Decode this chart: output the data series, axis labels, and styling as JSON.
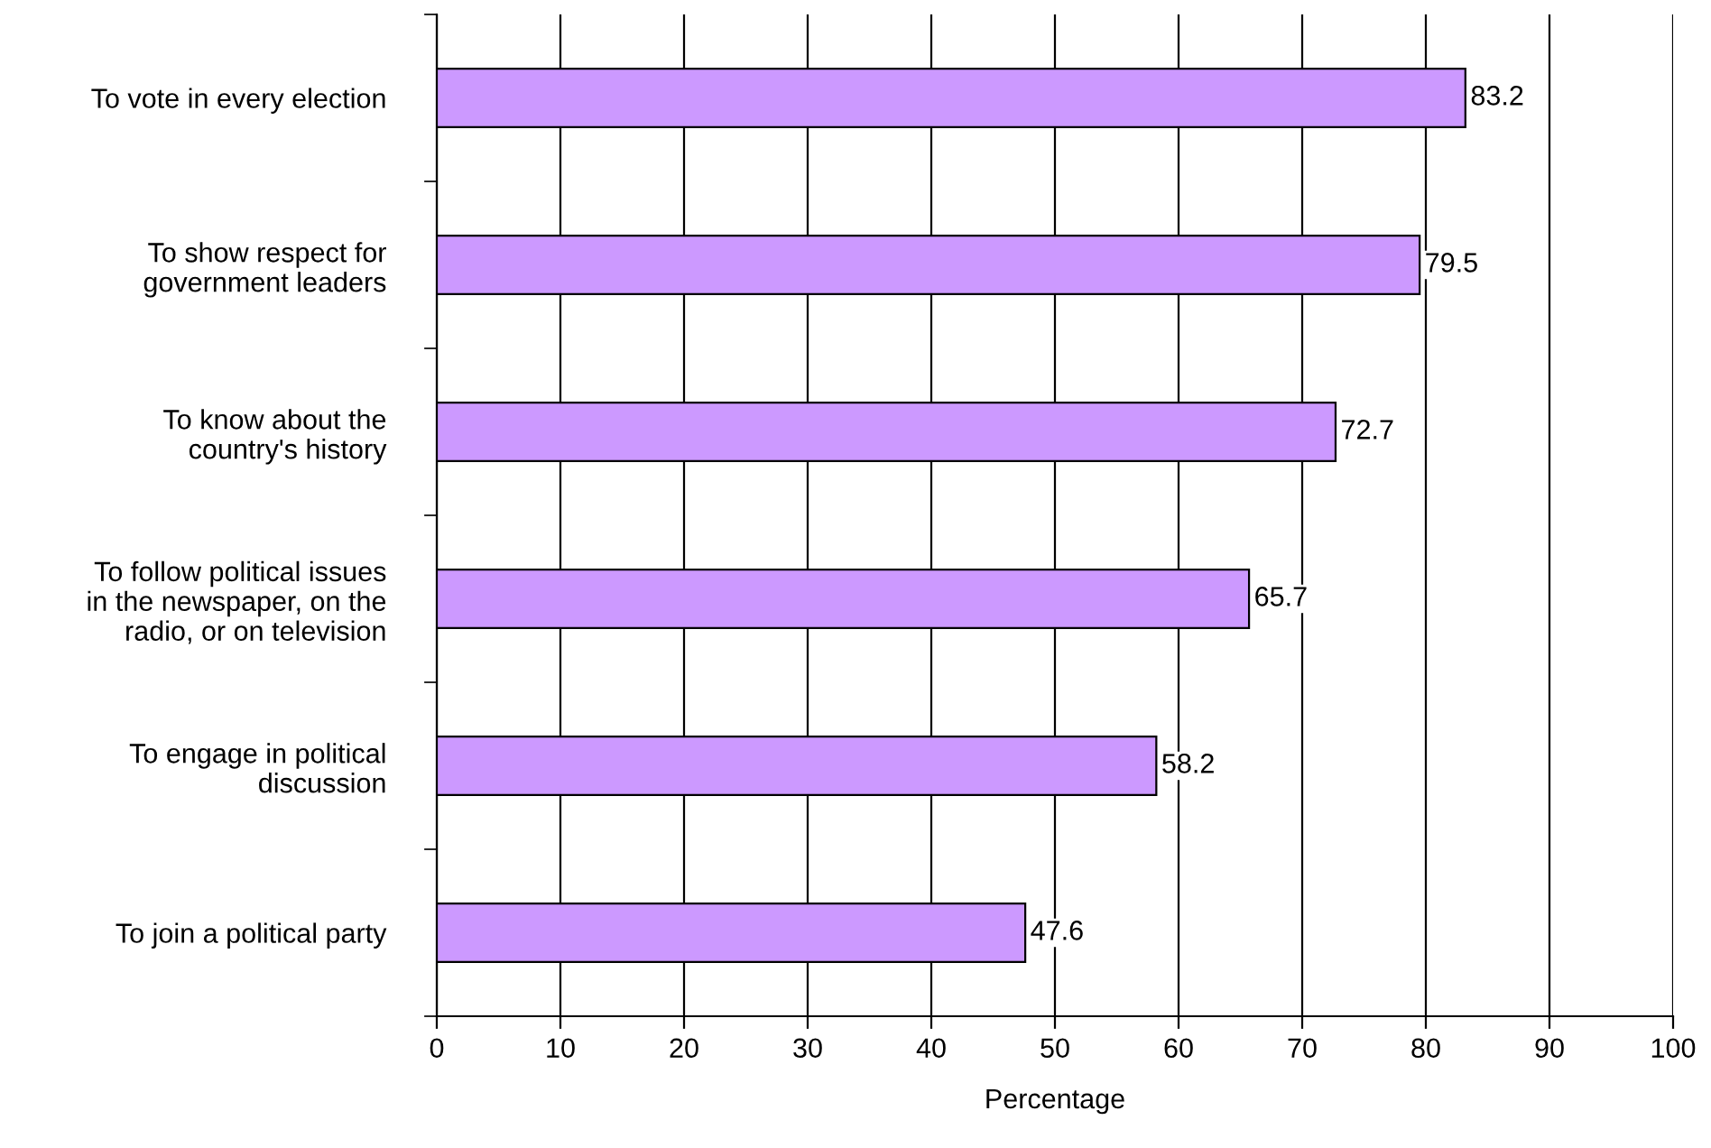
{
  "chart_data": {
    "type": "bar",
    "orientation": "horizontal",
    "xlabel": "Percentage",
    "categories": [
      "To vote in every election",
      "To show respect for\ngovernment leaders",
      "To know about the\ncountry's history",
      "To follow political issues\nin the newspaper, on the\nradio, or on television",
      "To engage in political\ndiscussion",
      "To join a political party"
    ],
    "values": [
      83.2,
      79.5,
      72.7,
      65.7,
      58.2,
      47.6
    ],
    "color": "#cc99ff",
    "xlim": [
      0,
      100
    ],
    "xticks": [
      0,
      10,
      20,
      30,
      40,
      50,
      60,
      70,
      80,
      90,
      100
    ],
    "grid": "x",
    "data_labels": true
  }
}
